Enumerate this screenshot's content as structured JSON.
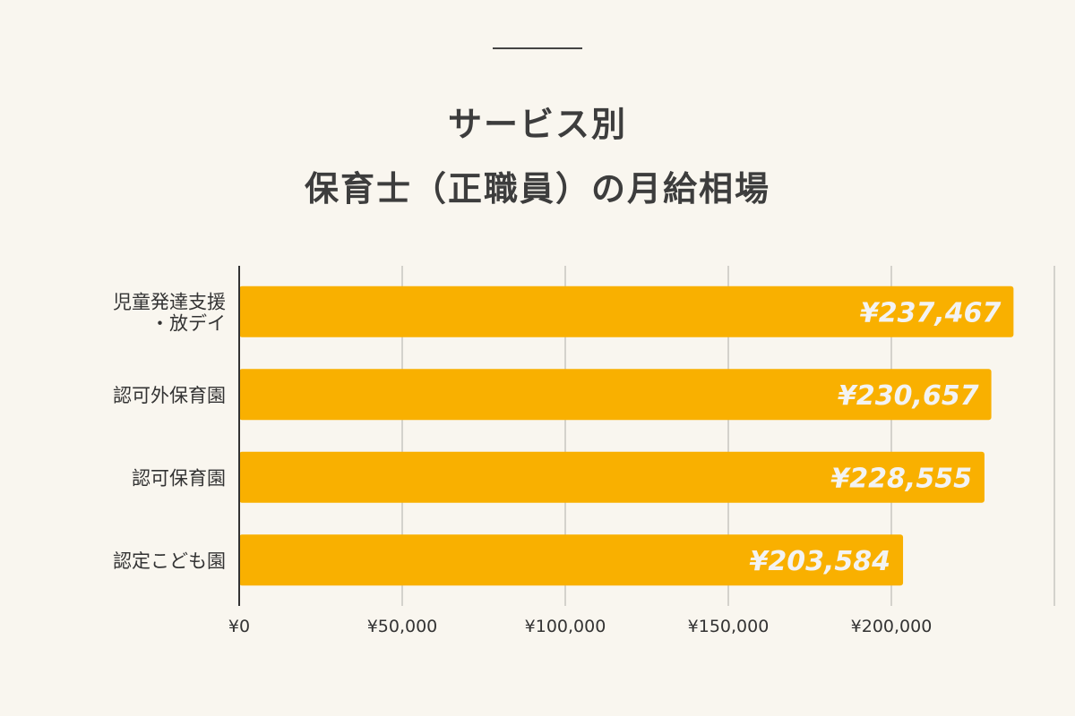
{
  "title_lines": [
    "サービス別",
    "保育士（正職員）の月給相場"
  ],
  "chart_data": {
    "type": "bar",
    "orientation": "horizontal",
    "title": "サービス別 保育士（正職員）の月給相場",
    "categories": [
      "児童発達支援\n・放デイ",
      "認可外保育園",
      "認可保育園",
      "認定こども園"
    ],
    "values": [
      237467,
      230657,
      228555,
      203584
    ],
    "value_labels": [
      "¥237,467",
      "¥230,657",
      "¥228,555",
      "¥203,584"
    ],
    "xlim": [
      0,
      250000
    ],
    "xticks": [
      0,
      50000,
      100000,
      150000,
      200000
    ],
    "xtick_labels": [
      "¥0",
      "¥50,000",
      "¥100,000",
      "¥150,000",
      "¥200,000"
    ],
    "grid": true,
    "bar_color": "#F9B000",
    "label_color": "#F3F3F3"
  }
}
